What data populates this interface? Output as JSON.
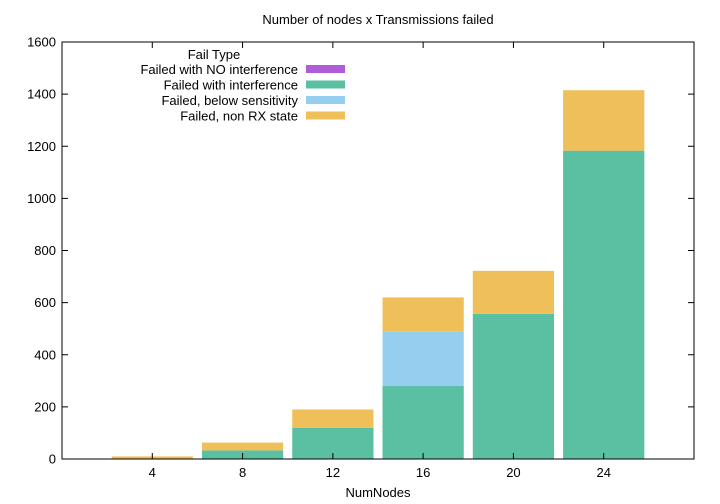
{
  "chart_data": {
    "type": "bar",
    "stacked": true,
    "title": "Number of nodes x Transmissions failed",
    "xlabel": "NumNodes",
    "ylabel": "",
    "categories": [
      "4",
      "8",
      "12",
      "16",
      "20",
      "24"
    ],
    "ylim": [
      0,
      1600
    ],
    "yticks": [
      0,
      200,
      400,
      600,
      800,
      1000,
      1200,
      1400,
      1600
    ],
    "grid": false,
    "legend": {
      "title": "Fail Type",
      "position": "top-left"
    },
    "series": [
      {
        "name": "Failed with NO interference",
        "color": "#b05cd9",
        "values": [
          0,
          0,
          0,
          0,
          0,
          0
        ]
      },
      {
        "name": "Failed with interference",
        "color": "#5bc0a2",
        "values": [
          0,
          33,
          120,
          280,
          557,
          1183
        ]
      },
      {
        "name": "Failed, below sensitivity",
        "color": "#94cff0",
        "values": [
          0,
          0,
          0,
          210,
          0,
          0
        ]
      },
      {
        "name": "Failed, non RX state",
        "color": "#efbf5a",
        "values": [
          10,
          30,
          70,
          130,
          165,
          232
        ]
      }
    ]
  }
}
